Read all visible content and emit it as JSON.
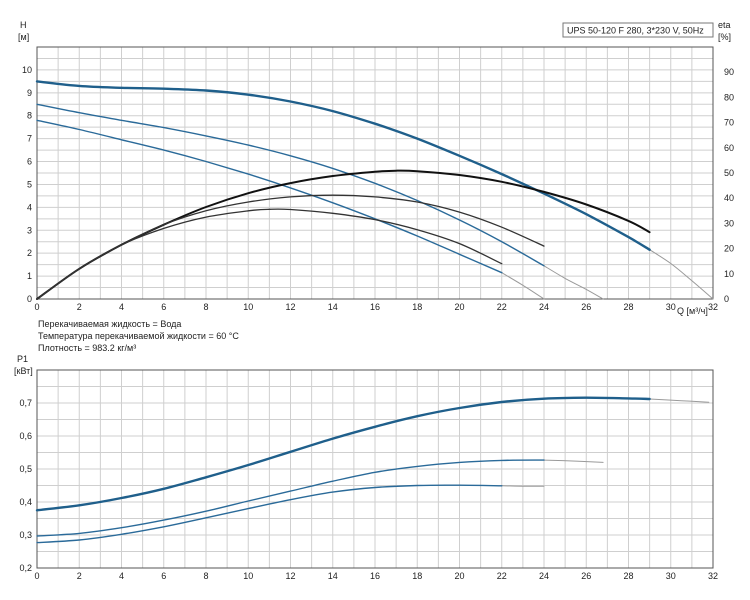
{
  "chart_data": [
    {
      "type": "line",
      "title": "UPS 50-120 F 280, 3*230 V, 50Hz",
      "ylabel": "H",
      "ylabel_unit": "[м]",
      "y2label": "eta",
      "y2label_unit": "[%]",
      "xlabel": "Q [м³/ч]",
      "xlim": [
        0,
        32
      ],
      "ylim": [
        0,
        11
      ],
      "y2lim": [
        0,
        100
      ],
      "x_ticks": [
        0,
        2,
        4,
        6,
        8,
        10,
        12,
        14,
        16,
        18,
        20,
        22,
        24,
        26,
        28,
        30,
        32
      ],
      "y_ticks": [
        0,
        1,
        2,
        3,
        4,
        5,
        6,
        7,
        8,
        9,
        10
      ],
      "y2_ticks": [
        0,
        10,
        20,
        30,
        40,
        50,
        60,
        70,
        80,
        90
      ],
      "grid": true,
      "notes": [
        "Перекачиваемая жидкость = Вода",
        "Температура перекачиваемой жидкости = 60 °C",
        "Плотность = 983.2 кг/м³"
      ],
      "series": [
        {
          "axis": "left",
          "color": "#1f5f8b",
          "width": 2.4,
          "points": [
            [
              0,
              9.5
            ],
            [
              2,
              9.3
            ],
            [
              4,
              9.22
            ],
            [
              6,
              9.18
            ],
            [
              8,
              9.1
            ],
            [
              10,
              8.92
            ],
            [
              12,
              8.62
            ],
            [
              14,
              8.2
            ],
            [
              16,
              7.65
            ],
            [
              18,
              7.0
            ],
            [
              20,
              6.25
            ],
            [
              22,
              5.45
            ],
            [
              24,
              4.6
            ],
            [
              26,
              3.7
            ],
            [
              28,
              2.7
            ],
            [
              29,
              2.15
            ]
          ],
          "extension": [
            [
              29,
              2.15
            ],
            [
              30,
              1.55
            ],
            [
              31,
              0.8
            ],
            [
              32,
              0
            ]
          ]
        },
        {
          "axis": "left",
          "color": "#2a6a99",
          "width": 1.4,
          "points": [
            [
              0,
              8.5
            ],
            [
              2,
              8.13
            ],
            [
              4,
              7.8
            ],
            [
              6,
              7.48
            ],
            [
              8,
              7.12
            ],
            [
              10,
              6.72
            ],
            [
              12,
              6.25
            ],
            [
              14,
              5.7
            ],
            [
              16,
              5.05
            ],
            [
              18,
              4.3
            ],
            [
              20,
              3.45
            ],
            [
              22,
              2.5
            ],
            [
              24,
              1.45
            ]
          ],
          "extension": [
            [
              24,
              1.45
            ],
            [
              25,
              0.9
            ],
            [
              26,
              0.42
            ],
            [
              26.8,
              0
            ]
          ]
        },
        {
          "axis": "left",
          "color": "#2a6a99",
          "width": 1.4,
          "points": [
            [
              0,
              7.8
            ],
            [
              2,
              7.4
            ],
            [
              4,
              6.95
            ],
            [
              6,
              6.5
            ],
            [
              8,
              6.0
            ],
            [
              10,
              5.45
            ],
            [
              12,
              4.85
            ],
            [
              14,
              4.2
            ],
            [
              16,
              3.5
            ],
            [
              18,
              2.75
            ],
            [
              20,
              1.95
            ],
            [
              22,
              1.15
            ]
          ],
          "extension": [
            [
              22,
              1.15
            ],
            [
              23,
              0.6
            ],
            [
              24,
              0
            ]
          ]
        },
        {
          "axis": "right",
          "color": "#111111",
          "width": 2.0,
          "points": [
            [
              0,
              0
            ],
            [
              2,
              12
            ],
            [
              4,
              21.5
            ],
            [
              6,
              29.5
            ],
            [
              8,
              36.5
            ],
            [
              10,
              42
            ],
            [
              12,
              46
            ],
            [
              14,
              48.8
            ],
            [
              16,
              50.5
            ],
            [
              17,
              50.9
            ],
            [
              18,
              50.7
            ],
            [
              20,
              49.2
            ],
            [
              22,
              46.5
            ],
            [
              24,
              42.5
            ],
            [
              26,
              37.5
            ],
            [
              28,
              31
            ],
            [
              29,
              26.5
            ]
          ]
        },
        {
          "axis": "right",
          "color": "#333333",
          "width": 1.3,
          "points": [
            [
              0,
              0
            ],
            [
              2,
              12
            ],
            [
              4,
              21.5
            ],
            [
              6,
              29.5
            ],
            [
              8,
              35
            ],
            [
              10,
              38.5
            ],
            [
              12,
              40.5
            ],
            [
              14,
              41.2
            ],
            [
              16,
              40.5
            ],
            [
              18,
              38.5
            ],
            [
              20,
              34.5
            ],
            [
              22,
              28.5
            ],
            [
              24,
              21
            ]
          ]
        },
        {
          "axis": "right",
          "color": "#333333",
          "width": 1.3,
          "points": [
            [
              0,
              0
            ],
            [
              2,
              12
            ],
            [
              4,
              21.5
            ],
            [
              6,
              28
            ],
            [
              8,
              32.5
            ],
            [
              10,
              35
            ],
            [
              11,
              35.6
            ],
            [
              12,
              35.5
            ],
            [
              14,
              34
            ],
            [
              16,
              31.5
            ],
            [
              18,
              27.5
            ],
            [
              20,
              22
            ],
            [
              22,
              14
            ]
          ]
        }
      ]
    },
    {
      "type": "line",
      "ylabel": "P1",
      "ylabel_unit": "[кВт]",
      "xlim": [
        0,
        32
      ],
      "ylim": [
        0.2,
        0.8
      ],
      "y_ticks": [
        0.2,
        0.3,
        0.4,
        0.5,
        0.6,
        0.7
      ],
      "y_tick_labels": [
        "0,2",
        "0,3",
        "0,4",
        "0,5",
        "0,6",
        "0,7"
      ],
      "grid": true,
      "series": [
        {
          "color": "#1f5f8b",
          "width": 2.4,
          "points": [
            [
              0,
              0.375
            ],
            [
              2,
              0.39
            ],
            [
              4,
              0.412
            ],
            [
              6,
              0.44
            ],
            [
              8,
              0.475
            ],
            [
              10,
              0.512
            ],
            [
              12,
              0.552
            ],
            [
              14,
              0.592
            ],
            [
              16,
              0.628
            ],
            [
              18,
              0.66
            ],
            [
              20,
              0.685
            ],
            [
              22,
              0.703
            ],
            [
              24,
              0.713
            ],
            [
              26,
              0.716
            ],
            [
              28,
              0.714
            ],
            [
              29,
              0.712
            ]
          ],
          "extension": [
            [
              29,
              0.712
            ],
            [
              30.5,
              0.707
            ],
            [
              31.8,
              0.702
            ]
          ]
        },
        {
          "color": "#2a6a99",
          "width": 1.4,
          "points": [
            [
              0,
              0.297
            ],
            [
              2,
              0.305
            ],
            [
              4,
              0.322
            ],
            [
              6,
              0.345
            ],
            [
              8,
              0.372
            ],
            [
              10,
              0.403
            ],
            [
              12,
              0.433
            ],
            [
              14,
              0.463
            ],
            [
              16,
              0.49
            ],
            [
              18,
              0.508
            ],
            [
              20,
              0.52
            ],
            [
              22,
              0.526
            ],
            [
              24,
              0.527
            ]
          ],
          "extension": [
            [
              24,
              0.527
            ],
            [
              25.5,
              0.524
            ],
            [
              26.8,
              0.52
            ]
          ]
        },
        {
          "color": "#2a6a99",
          "width": 1.4,
          "points": [
            [
              0,
              0.277
            ],
            [
              2,
              0.285
            ],
            [
              4,
              0.302
            ],
            [
              6,
              0.325
            ],
            [
              8,
              0.352
            ],
            [
              10,
              0.38
            ],
            [
              12,
              0.407
            ],
            [
              14,
              0.43
            ],
            [
              16,
              0.444
            ],
            [
              18,
              0.45
            ],
            [
              20,
              0.451
            ],
            [
              22,
              0.449
            ]
          ],
          "extension": [
            [
              22,
              0.449
            ],
            [
              23,
              0.448
            ],
            [
              24,
              0.448
            ]
          ]
        }
      ]
    }
  ]
}
